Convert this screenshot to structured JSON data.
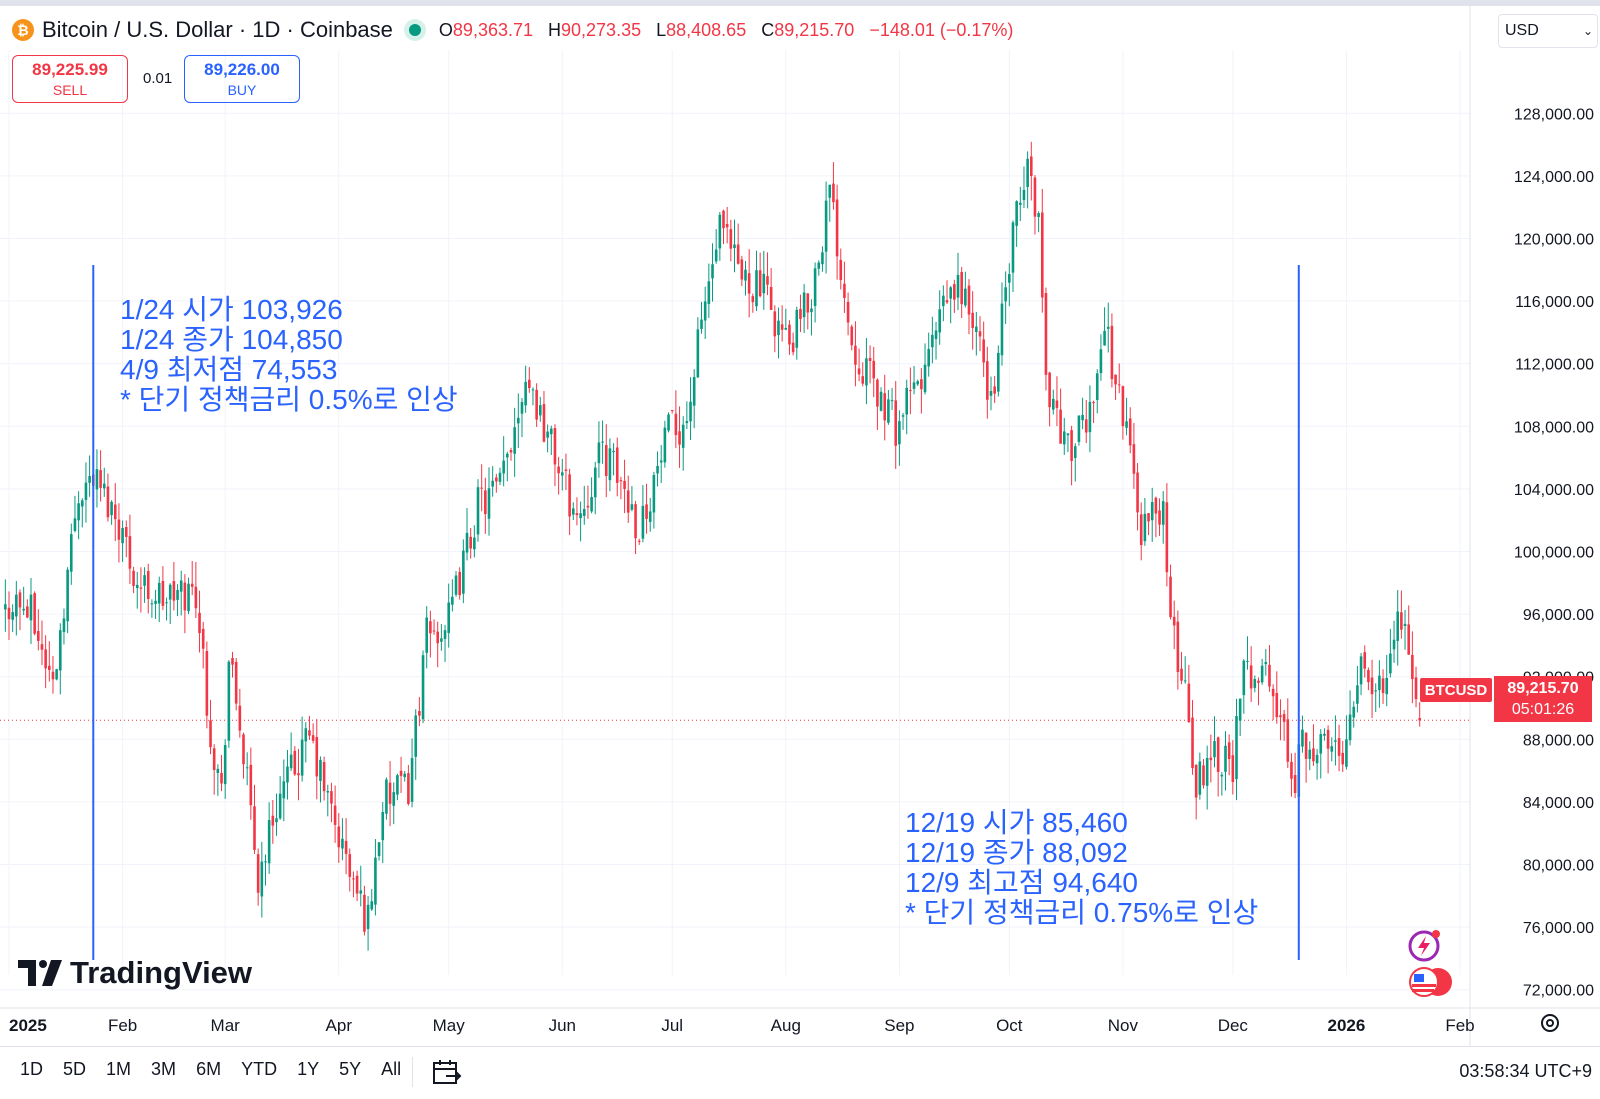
{
  "header": {
    "title": "Bitcoin / U.S. Dollar · 1D · Coinbase",
    "o_label": "O",
    "o": "89,363.71",
    "h_label": "H",
    "h": "90,273.35",
    "l_label": "L",
    "l": "88,408.65",
    "c_label": "C",
    "c": "89,215.70",
    "change": "−148.01 (−0.17%)"
  },
  "currency": "USD",
  "trade": {
    "sell_price": "89,225.99",
    "sell_label": "SELL",
    "spread": "0.01",
    "buy_price": "89,226.00",
    "buy_label": "BUY"
  },
  "price_tag": {
    "symbol": "BTCUSD",
    "price": "89,215.70",
    "countdown": "05:01:26"
  },
  "logo": "TradingView",
  "annotations": {
    "left": [
      "1/24 시가 103,926",
      "1/24 종가 104,850",
      "4/9 최저점 74,553",
      "* 단기 정책금리 0.5%로 인상"
    ],
    "right": [
      "12/19 시가 85,460",
      "12/19 종가 88,092",
      "12/9 최고점 94,640",
      "* 단기 정책금리 0.75%로 인상"
    ]
  },
  "ranges": [
    "1D",
    "5D",
    "1M",
    "3M",
    "6M",
    "YTD",
    "1Y",
    "5Y",
    "All"
  ],
  "clock": "03:58:34 UTC+9",
  "colors": {
    "up": "#089981",
    "down": "#f23645",
    "annotation": "#2962ff"
  },
  "chart_data": {
    "type": "candlestick",
    "ylim": [
      70000,
      130000
    ],
    "y_ticks": [
      "128,000.00",
      "124,000.00",
      "120,000.00",
      "116,000.00",
      "112,000.00",
      "108,000.00",
      "104,000.00",
      "100,000.00",
      "96,000.00",
      "92,000.00",
      "88,000.00",
      "84,000.00",
      "80,000.00",
      "76,000.00",
      "72,000.00"
    ],
    "x_ticks": [
      {
        "label": "2025",
        "date": "2025-01-01",
        "bold": true
      },
      {
        "label": "Feb",
        "date": "2025-02-01"
      },
      {
        "label": "Mar",
        "date": "2025-03-01"
      },
      {
        "label": "Apr",
        "date": "2025-04-01"
      },
      {
        "label": "May",
        "date": "2025-05-01"
      },
      {
        "label": "Jun",
        "date": "2025-06-01"
      },
      {
        "label": "Jul",
        "date": "2025-07-01"
      },
      {
        "label": "Aug",
        "date": "2025-08-01"
      },
      {
        "label": "Sep",
        "date": "2025-09-01"
      },
      {
        "label": "Oct",
        "date": "2025-10-01"
      },
      {
        "label": "Nov",
        "date": "2025-11-01"
      },
      {
        "label": "Dec",
        "date": "2025-12-01"
      },
      {
        "label": "2026",
        "date": "2026-01-01",
        "bold": true
      },
      {
        "label": "Feb",
        "date": "2026-02-01"
      }
    ],
    "vertical_lines": [
      "2025-01-24",
      "2025-12-19"
    ],
    "last_price": 89215.7,
    "close_path": [
      [
        "2024-12-28",
        94500
      ],
      [
        "2025-01-02",
        97000
      ],
      [
        "2025-01-07",
        96000
      ],
      [
        "2025-01-13",
        91500
      ],
      [
        "2025-01-20",
        104000
      ],
      [
        "2025-01-24",
        104850
      ],
      [
        "2025-01-31",
        102000
      ],
      [
        "2025-02-05",
        98000
      ],
      [
        "2025-02-12",
        97000
      ],
      [
        "2025-02-21",
        97500
      ],
      [
        "2025-02-25",
        88500
      ],
      [
        "2025-02-28",
        84500
      ],
      [
        "2025-03-02",
        93000
      ],
      [
        "2025-03-05",
        89000
      ],
      [
        "2025-03-10",
        79000
      ],
      [
        "2025-03-15",
        84000
      ],
      [
        "2025-03-24",
        88000
      ],
      [
        "2025-03-31",
        82500
      ],
      [
        "2025-04-06",
        78000
      ],
      [
        "2025-04-09",
        76500
      ],
      [
        "2025-04-13",
        84000
      ],
      [
        "2025-04-20",
        85000
      ],
      [
        "2025-04-25",
        94500
      ],
      [
        "2025-05-01",
        95500
      ],
      [
        "2025-05-09",
        103000
      ],
      [
        "2025-05-15",
        104000
      ],
      [
        "2025-05-22",
        111500
      ],
      [
        "2025-05-28",
        107500
      ],
      [
        "2025-06-05",
        102000
      ],
      [
        "2025-06-12",
        106500
      ],
      [
        "2025-06-18",
        104000
      ],
      [
        "2025-06-22",
        101500
      ],
      [
        "2025-06-30",
        107500
      ],
      [
        "2025-07-05",
        108500
      ],
      [
        "2025-07-10",
        116000
      ],
      [
        "2025-07-14",
        120500
      ],
      [
        "2025-07-20",
        117500
      ],
      [
        "2025-07-25",
        117000
      ],
      [
        "2025-08-02",
        113000
      ],
      [
        "2025-08-08",
        116500
      ],
      [
        "2025-08-13",
        123000
      ],
      [
        "2025-08-19",
        113500
      ],
      [
        "2025-08-25",
        110500
      ],
      [
        "2025-08-31",
        108000
      ],
      [
        "2025-09-07",
        111000
      ],
      [
        "2025-09-14",
        116000
      ],
      [
        "2025-09-18",
        117000
      ],
      [
        "2025-09-24",
        112000
      ],
      [
        "2025-09-26",
        109500
      ],
      [
        "2025-10-02",
        120000
      ],
      [
        "2025-10-06",
        124500
      ],
      [
        "2025-10-09",
        121500
      ],
      [
        "2025-10-11",
        111000
      ],
      [
        "2025-10-17",
        106500
      ],
      [
        "2025-10-22",
        108000
      ],
      [
        "2025-10-27",
        114500
      ],
      [
        "2025-11-03",
        106500
      ],
      [
        "2025-11-06",
        101500
      ],
      [
        "2025-11-12",
        103000
      ],
      [
        "2025-11-14",
        95000
      ],
      [
        "2025-11-18",
        91500
      ],
      [
        "2025-11-21",
        85000
      ],
      [
        "2025-11-25",
        87500
      ],
      [
        "2025-12-01",
        86500
      ],
      [
        "2025-12-04",
        92000
      ],
      [
        "2025-12-09",
        92700
      ],
      [
        "2025-12-13",
        90000
      ],
      [
        "2025-12-18",
        85500
      ],
      [
        "2025-12-19",
        88092
      ],
      [
        "2025-12-25",
        87500
      ],
      [
        "2025-12-31",
        87600
      ],
      [
        "2026-01-05",
        93500
      ],
      [
        "2026-01-10",
        90800
      ],
      [
        "2026-01-14",
        95500
      ],
      [
        "2026-01-17",
        95000
      ],
      [
        "2026-01-20",
        90500
      ],
      [
        "2026-01-21",
        89215.7
      ]
    ]
  }
}
